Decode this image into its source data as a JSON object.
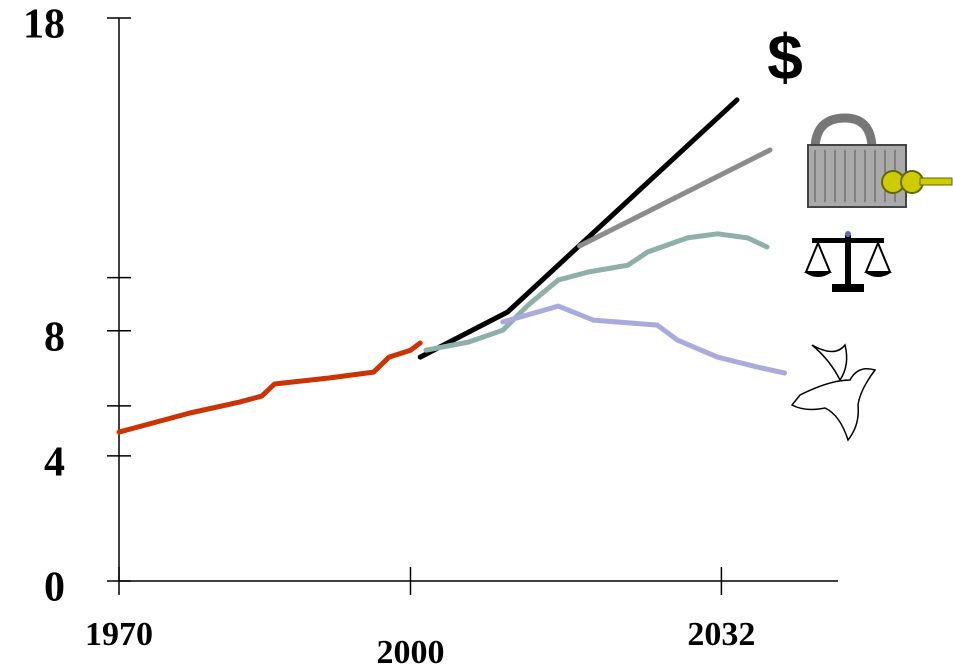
{
  "chart_data": {
    "type": "line",
    "annotations": [
      "$"
    ],
    "xlim": [
      1970,
      2044
    ],
    "xticks": [
      1970,
      2000,
      2032
    ],
    "ylim": [
      0,
      18
    ],
    "yticks": [
      0,
      4,
      8,
      18
    ],
    "yminorticks": [
      5.6,
      9.7
    ],
    "series": [
      {
        "color": "#cc3300",
        "x": [
          1970,
          1977.3,
          1982.4,
          1984.7,
          1986,
          1991.6,
          1996.2,
          1997.8,
          2000,
          2001
        ],
        "values": [
          4.76,
          5.37,
          5.72,
          5.91,
          6.3,
          6.49,
          6.68,
          7.16,
          7.38,
          7.61
        ]
      },
      {
        "color": "#000000",
        "x": [
          2001,
          2010,
          2033.6
        ],
        "values": [
          7.16,
          8.6,
          15.38
        ]
      },
      {
        "color": "#8c8c8c",
        "x": [
          2017.4,
          2037
        ],
        "values": [
          10.71,
          13.78
        ]
      },
      {
        "color": "#8fb0a8",
        "x": [
          2001.6,
          2006,
          2009.5,
          2012.1,
          2015.2,
          2018.3,
          2022.4,
          2024.4,
          2028.5,
          2031.6,
          2034.7,
          2036.7
        ],
        "values": [
          7.38,
          7.64,
          8.02,
          8.82,
          9.62,
          9.88,
          10.1,
          10.52,
          10.97,
          11.1,
          10.97,
          10.68
        ]
      },
      {
        "color": "#aaaadd",
        "x": [
          2009.5,
          2015.2,
          2018.8,
          2025.4,
          2027.5,
          2031.6,
          2035.7,
          2038.5
        ],
        "values": [
          8.28,
          8.79,
          8.34,
          8.18,
          7.7,
          7.16,
          6.84,
          6.65
        ]
      }
    ]
  }
}
